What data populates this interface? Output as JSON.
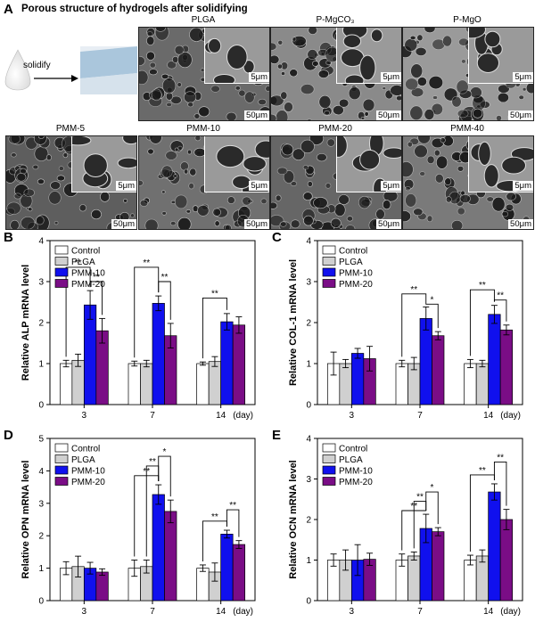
{
  "panel_a": {
    "letter": "A",
    "title": "Porous structure of hydrogels after solidifying",
    "schematic_label": "solidify",
    "scale_large": "50μm",
    "scale_small": "5μm",
    "images": [
      {
        "label": "PLGA",
        "tone": "#6a6a6a"
      },
      {
        "label": "P-MgCO₃",
        "tone": "#8a8a8a"
      },
      {
        "label": "P-MgO",
        "tone": "#9a9a9a"
      },
      {
        "label": "PMM-5",
        "tone": "#5e5e5e"
      },
      {
        "label": "PMM-10",
        "tone": "#707070"
      },
      {
        "label": "PMM-20",
        "tone": "#666666"
      },
      {
        "label": "PMM-40",
        "tone": "#7a7a7a"
      }
    ]
  },
  "legend": [
    "Control",
    "PLGA",
    "PMM-10",
    "PMM-20"
  ],
  "colors": {
    "Control": "#ffffff",
    "PLGA": "#d0d0d0",
    "PMM-10": "#1010ee",
    "PMM-20": "#7a0d86"
  },
  "chart_data": [
    {
      "letter": "B",
      "type": "bar",
      "ylabel": "Relative ALP mRNA level",
      "categories": [
        "3",
        "7",
        "14"
      ],
      "xunit": "(day)",
      "ylim": [
        0,
        4
      ],
      "yticks": [
        0,
        1,
        2,
        3,
        4
      ],
      "series": [
        {
          "name": "Control",
          "values": [
            1.0,
            1.0,
            1.0
          ],
          "err": [
            0.08,
            0.06,
            0.04
          ]
        },
        {
          "name": "PLGA",
          "values": [
            1.08,
            1.0,
            1.05
          ],
          "err": [
            0.15,
            0.08,
            0.12
          ]
        },
        {
          "name": "PMM-10",
          "values": [
            2.43,
            2.47,
            2.02
          ],
          "err": [
            0.35,
            0.18,
            0.2
          ]
        },
        {
          "name": "PMM-20",
          "values": [
            1.8,
            1.68,
            1.94
          ],
          "err": [
            0.3,
            0.3,
            0.2
          ]
        }
      ],
      "sig": [
        {
          "group": 0,
          "from": 0,
          "to": 2,
          "level": 3.35,
          "label": "**"
        },
        {
          "group": 0,
          "from": 2,
          "to": 3,
          "level": 3.0,
          "label": "**"
        },
        {
          "group": 1,
          "from": 0,
          "to": 2,
          "level": 3.35,
          "label": "**"
        },
        {
          "group": 1,
          "from": 2,
          "to": 3,
          "level": 3.0,
          "label": "**"
        },
        {
          "group": 2,
          "from": 0,
          "to": 2,
          "level": 2.6,
          "label": "**"
        }
      ]
    },
    {
      "letter": "C",
      "type": "bar",
      "ylabel": "Relative COL-1 mRNA level",
      "categories": [
        "3",
        "7",
        "14"
      ],
      "xunit": "(day)",
      "ylim": [
        0,
        4
      ],
      "yticks": [
        0,
        1,
        2,
        3,
        4
      ],
      "series": [
        {
          "name": "Control",
          "values": [
            1.0,
            1.0,
            1.0
          ],
          "err": [
            0.28,
            0.08,
            0.1
          ]
        },
        {
          "name": "PLGA",
          "values": [
            1.0,
            1.0,
            1.0
          ],
          "err": [
            0.1,
            0.15,
            0.08
          ]
        },
        {
          "name": "PMM-10",
          "values": [
            1.25,
            2.1,
            2.2
          ],
          "err": [
            0.12,
            0.28,
            0.22
          ]
        },
        {
          "name": "PMM-20",
          "values": [
            1.12,
            1.68,
            1.82
          ],
          "err": [
            0.3,
            0.1,
            0.12
          ]
        }
      ],
      "sig": [
        {
          "group": 1,
          "from": 0,
          "to": 2,
          "level": 2.7,
          "label": "**"
        },
        {
          "group": 1,
          "from": 2,
          "to": 3,
          "level": 2.45,
          "label": "*"
        },
        {
          "group": 2,
          "from": 0,
          "to": 2,
          "level": 2.8,
          "label": "**"
        },
        {
          "group": 2,
          "from": 2,
          "to": 3,
          "level": 2.55,
          "label": "**"
        }
      ]
    },
    {
      "letter": "D",
      "type": "bar",
      "ylabel": "Relative OPN mRNA level",
      "categories": [
        "3",
        "7",
        "14"
      ],
      "xunit": "(day)",
      "ylim": [
        0,
        5
      ],
      "yticks": [
        0,
        1,
        2,
        3,
        4,
        5
      ],
      "series": [
        {
          "name": "Control",
          "values": [
            1.0,
            1.0,
            1.0
          ],
          "err": [
            0.2,
            0.25,
            0.1
          ]
        },
        {
          "name": "PLGA",
          "values": [
            1.05,
            1.05,
            0.88
          ],
          "err": [
            0.32,
            0.2,
            0.28
          ]
        },
        {
          "name": "PMM-10",
          "values": [
            1.0,
            3.27,
            2.05
          ],
          "err": [
            0.18,
            0.3,
            0.12
          ]
        },
        {
          "name": "PMM-20",
          "values": [
            0.88,
            2.75,
            1.73
          ],
          "err": [
            0.1,
            0.35,
            0.12
          ]
        }
      ],
      "sig": [
        {
          "group": 1,
          "from": 0,
          "to": 2,
          "level": 3.85,
          "label": "**"
        },
        {
          "group": 1,
          "from": 1,
          "to": 2,
          "level": 4.15,
          "label": "**"
        },
        {
          "group": 1,
          "from": 2,
          "to": 3,
          "level": 4.45,
          "label": "*"
        },
        {
          "group": 2,
          "from": 0,
          "to": 2,
          "level": 2.45,
          "label": "**"
        },
        {
          "group": 2,
          "from": 2,
          "to": 3,
          "level": 2.8,
          "label": "**"
        }
      ]
    },
    {
      "letter": "E",
      "type": "bar",
      "ylabel": "Relative OCN mRNA level",
      "categories": [
        "3",
        "7",
        "14"
      ],
      "xunit": "(day)",
      "ylim": [
        0,
        4
      ],
      "yticks": [
        0,
        1,
        2,
        3,
        4
      ],
      "series": [
        {
          "name": "Control",
          "values": [
            1.0,
            1.0,
            1.0
          ],
          "err": [
            0.15,
            0.15,
            0.12
          ]
        },
        {
          "name": "PLGA",
          "values": [
            1.0,
            1.1,
            1.1
          ],
          "err": [
            0.25,
            0.1,
            0.15
          ]
        },
        {
          "name": "PMM-10",
          "values": [
            1.0,
            1.78,
            2.68
          ],
          "err": [
            0.38,
            0.35,
            0.2
          ]
        },
        {
          "name": "PMM-20",
          "values": [
            1.02,
            1.7,
            2.0
          ],
          "err": [
            0.15,
            0.1,
            0.25
          ]
        }
      ],
      "sig": [
        {
          "group": 1,
          "from": 0,
          "to": 2,
          "level": 2.22,
          "label": "**"
        },
        {
          "group": 1,
          "from": 1,
          "to": 2,
          "level": 2.45,
          "label": "**"
        },
        {
          "group": 1,
          "from": 2,
          "to": 3,
          "level": 2.68,
          "label": "*"
        },
        {
          "group": 2,
          "from": 0,
          "to": 2,
          "level": 3.1,
          "label": "**"
        },
        {
          "group": 2,
          "from": 2,
          "to": 3,
          "level": 3.42,
          "label": "**"
        }
      ]
    }
  ]
}
